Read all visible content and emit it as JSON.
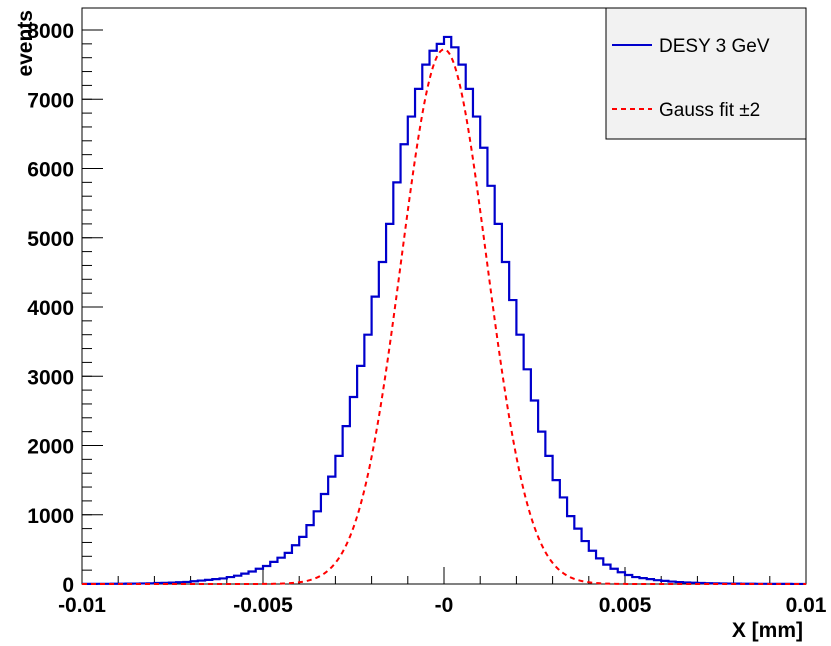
{
  "chart_data": {
    "type": "line",
    "xlabel": "X [mm]",
    "ylabel": "events",
    "xlim": [
      -0.01,
      0.01
    ],
    "ylim": [
      0,
      8000
    ],
    "grid": false,
    "legend_position": "top-right",
    "x_ticks": [
      {
        "value": -0.01,
        "label": "-0.01"
      },
      {
        "value": -0.005,
        "label": "-0.005"
      },
      {
        "value": 0,
        "label": "-0"
      },
      {
        "value": 0.005,
        "label": "0.005"
      },
      {
        "value": 0.01,
        "label": "0.01"
      }
    ],
    "y_ticks": [
      {
        "value": 0,
        "label": "0"
      },
      {
        "value": 1000,
        "label": "1000"
      },
      {
        "value": 2000,
        "label": "2000"
      },
      {
        "value": 3000,
        "label": "3000"
      },
      {
        "value": 4000,
        "label": "4000"
      },
      {
        "value": 5000,
        "label": "5000"
      },
      {
        "value": 6000,
        "label": "6000"
      },
      {
        "value": 7000,
        "label": "7000"
      },
      {
        "value": 8000,
        "label": "8000"
      }
    ],
    "series": [
      {
        "name": "DESY 3 GeV",
        "style": "histogram-step",
        "color": "#0000cc",
        "bin_width": 0.0002,
        "bins_x_low": [
          -0.01,
          -0.0098,
          -0.0096,
          -0.0094,
          -0.0092,
          -0.009,
          -0.0088,
          -0.0086,
          -0.0084,
          -0.0082,
          -0.008,
          -0.0078,
          -0.0076,
          -0.0074,
          -0.0072,
          -0.007,
          -0.0068,
          -0.0066,
          -0.0064,
          -0.0062,
          -0.006,
          -0.0058,
          -0.0056,
          -0.0054,
          -0.0052,
          -0.005,
          -0.0048,
          -0.0046,
          -0.0044,
          -0.0042,
          -0.004,
          -0.0038,
          -0.0036,
          -0.0034,
          -0.0032,
          -0.003,
          -0.0028,
          -0.0026,
          -0.0024,
          -0.0022,
          -0.002,
          -0.0018,
          -0.0016,
          -0.0014,
          -0.0012,
          -0.001,
          -0.0008,
          -0.0006,
          -0.0004,
          -0.0002,
          0,
          0.0002,
          0.0004,
          0.0006,
          0.0008,
          0.001,
          0.0012,
          0.0014,
          0.0016,
          0.0018,
          0.002,
          0.0022,
          0.0024,
          0.0026,
          0.0028,
          0.003,
          0.0032,
          0.0034,
          0.0036,
          0.0038,
          0.004,
          0.0042,
          0.0044,
          0.0046,
          0.0048,
          0.005,
          0.0052,
          0.0054,
          0.0056,
          0.0058,
          0.006,
          0.0062,
          0.0064,
          0.0066,
          0.0068,
          0.007,
          0.0072,
          0.0074,
          0.0076,
          0.0078,
          0.008,
          0.0082,
          0.0084,
          0.0086,
          0.0088,
          0.009,
          0.0092,
          0.0094,
          0.0096,
          0.0098
        ],
        "values": [
          2,
          2,
          3,
          3,
          4,
          4,
          5,
          6,
          8,
          10,
          14,
          16,
          20,
          25,
          30,
          40,
          50,
          60,
          70,
          80,
          100,
          120,
          150,
          180,
          220,
          260,
          320,
          380,
          450,
          560,
          680,
          850,
          1050,
          1300,
          1550,
          1850,
          2280,
          2700,
          3150,
          3600,
          4150,
          4650,
          5200,
          5800,
          6350,
          6750,
          7150,
          7500,
          7700,
          7800,
          7900,
          7750,
          7500,
          7150,
          6750,
          6300,
          5750,
          5200,
          4650,
          4100,
          3600,
          3100,
          2650,
          2200,
          1850,
          1500,
          1250,
          980,
          800,
          620,
          480,
          370,
          280,
          220,
          170,
          130,
          100,
          85,
          70,
          55,
          45,
          35,
          28,
          22,
          18,
          14,
          12,
          10,
          8,
          6,
          5,
          4,
          4,
          3,
          3,
          2,
          2,
          2,
          1,
          1
        ]
      },
      {
        "name": "Gauss fit ±2",
        "style": "dashed-curve",
        "color": "#ff0000",
        "function": "gaussian",
        "amplitude": 7720,
        "mean": 0,
        "sigma": 0.00118
      }
    ]
  }
}
